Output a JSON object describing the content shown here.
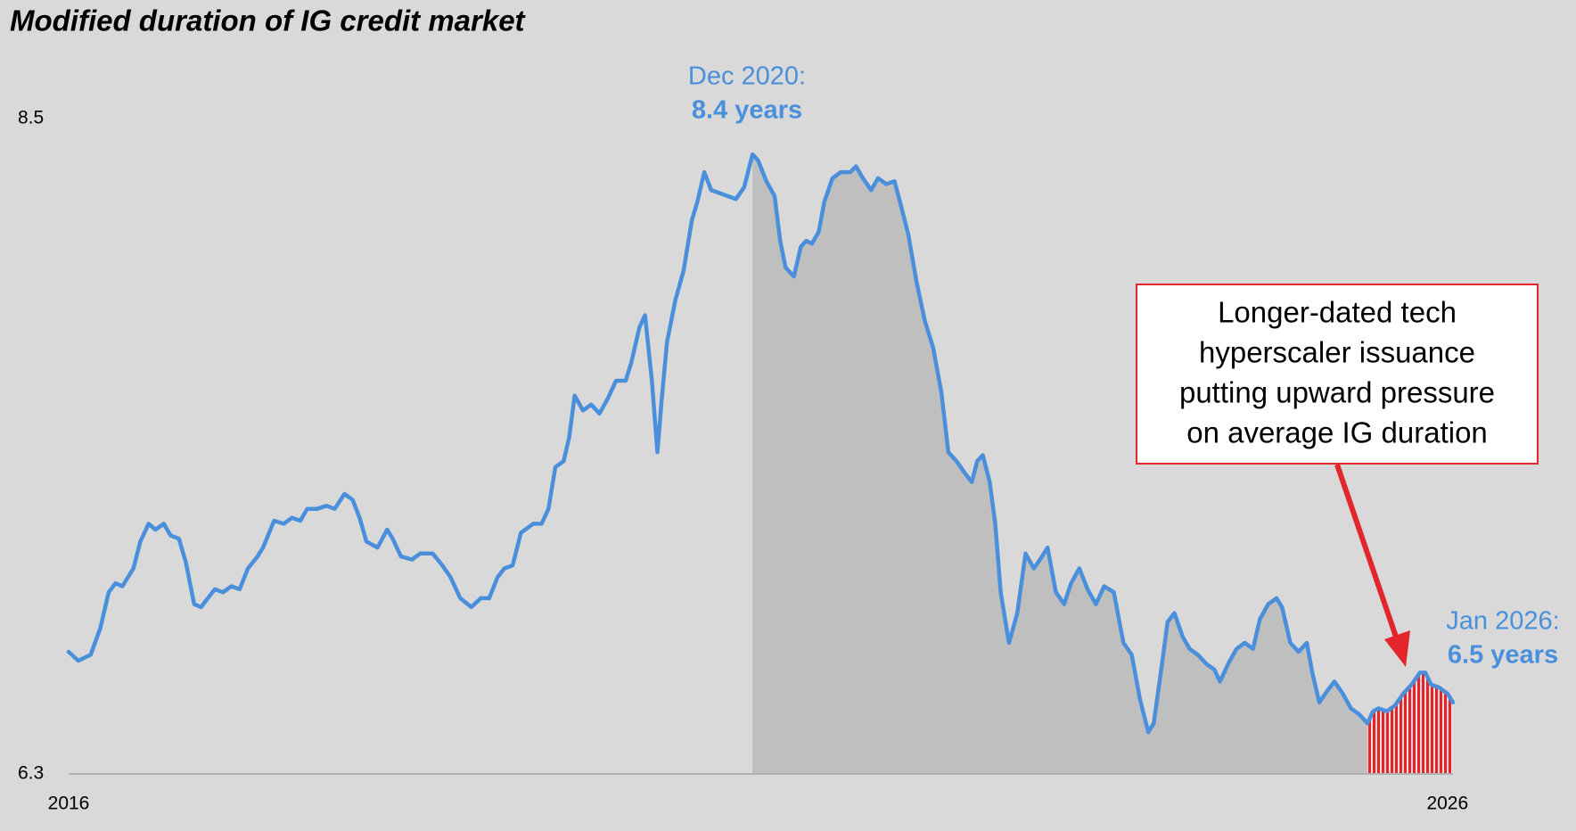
{
  "chart_data": {
    "type": "line",
    "title": "Modified duration of IG credit market",
    "x": [
      2016.0,
      2016.07,
      2016.16,
      2016.23,
      2016.29,
      2016.34,
      2016.39,
      2016.47,
      2016.52,
      2016.58,
      2016.63,
      2016.69,
      2016.74,
      2016.8,
      2016.85,
      2016.91,
      2016.96,
      2017.01,
      2017.06,
      2017.12,
      2017.18,
      2017.24,
      2017.3,
      2017.37,
      2017.41,
      2017.49,
      2017.56,
      2017.62,
      2017.68,
      2017.73,
      2017.8,
      2017.87,
      2017.93,
      2018.0,
      2018.06,
      2018.11,
      2018.16,
      2018.24,
      2018.31,
      2018.35,
      2018.41,
      2018.49,
      2018.55,
      2018.64,
      2018.71,
      2018.77,
      2018.84,
      2018.92,
      2018.99,
      2019.05,
      2019.11,
      2019.16,
      2019.22,
      2019.28,
      2019.37,
      2019.43,
      2019.48,
      2019.53,
      2019.59,
      2019.63,
      2019.67,
      2019.73,
      2019.79,
      2019.85,
      2019.91,
      2019.97,
      2020.04,
      2020.08,
      2020.14,
      2020.18,
      2020.23,
      2020.27,
      2020.3,
      2020.34,
      2020.4,
      2020.46,
      2020.52,
      2020.56,
      2020.61,
      2020.66,
      2020.72,
      2020.78,
      2020.84,
      2020.9,
      2020.96,
      2021.0,
      2021.06,
      2021.12,
      2021.16,
      2021.2,
      2021.26,
      2021.31,
      2021.35,
      2021.39,
      2021.44,
      2021.48,
      2021.54,
      2021.6,
      2021.67,
      2021.71,
      2021.76,
      2021.82,
      2021.87,
      2021.93,
      2021.99,
      2022.03,
      2022.09,
      2022.15,
      2022.21,
      2022.27,
      2022.33,
      2022.38,
      2022.44,
      2022.5,
      2022.55,
      2022.59,
      2022.63,
      2022.68,
      2022.72,
      2022.76,
      2022.82,
      2022.88,
      2022.94,
      2023.0,
      2023.06,
      2023.1,
      2023.16,
      2023.22,
      2023.27,
      2023.33,
      2023.39,
      2023.45,
      2023.51,
      2023.58,
      2023.65,
      2023.71,
      2023.77,
      2023.83,
      2023.87,
      2023.93,
      2023.97,
      2024.02,
      2024.08,
      2024.13,
      2024.19,
      2024.25,
      2024.31,
      2024.35,
      2024.41,
      2024.47,
      2024.53,
      2024.59,
      2024.64,
      2024.7,
      2024.76,
      2024.8,
      2024.86,
      2024.92,
      2024.98,
      2025.02,
      2025.07,
      2025.13,
      2025.18,
      2025.24,
      2025.3,
      2025.36,
      2025.42,
      2025.46,
      2025.5,
      2025.56,
      2025.62,
      2025.68,
      2025.74,
      2025.8,
      2025.84,
      2025.88,
      2025.94,
      2026.0,
      2026.04
    ],
    "values": [
      6.71,
      6.68,
      6.7,
      6.79,
      6.91,
      6.94,
      6.93,
      6.99,
      7.08,
      7.14,
      7.12,
      7.14,
      7.1,
      7.09,
      7.01,
      6.87,
      6.86,
      6.89,
      6.92,
      6.91,
      6.93,
      6.92,
      6.99,
      7.03,
      7.06,
      7.15,
      7.14,
      7.16,
      7.15,
      7.19,
      7.19,
      7.2,
      7.19,
      7.24,
      7.22,
      7.16,
      7.08,
      7.06,
      7.12,
      7.09,
      7.03,
      7.02,
      7.04,
      7.04,
      7.0,
      6.96,
      6.89,
      6.86,
      6.89,
      6.89,
      6.96,
      6.99,
      7.0,
      7.11,
      7.14,
      7.14,
      7.19,
      7.33,
      7.35,
      7.43,
      7.57,
      7.52,
      7.54,
      7.51,
      7.56,
      7.62,
      7.62,
      7.68,
      7.8,
      7.84,
      7.62,
      7.38,
      7.55,
      7.75,
      7.89,
      7.99,
      8.16,
      8.22,
      8.32,
      8.26,
      8.25,
      8.24,
      8.23,
      8.27,
      8.38,
      8.36,
      8.29,
      8.24,
      8.09,
      8.0,
      7.97,
      8.07,
      8.09,
      8.08,
      8.12,
      8.22,
      8.3,
      8.32,
      8.32,
      8.34,
      8.3,
      8.26,
      8.3,
      8.28,
      8.29,
      8.22,
      8.11,
      7.95,
      7.82,
      7.73,
      7.58,
      7.38,
      7.35,
      7.31,
      7.28,
      7.35,
      7.37,
      7.28,
      7.14,
      6.91,
      6.74,
      6.84,
      7.04,
      6.99,
      7.03,
      7.06,
      6.91,
      6.87,
      6.94,
      6.99,
      6.92,
      6.87,
      6.93,
      6.91,
      6.74,
      6.7,
      6.55,
      6.44,
      6.47,
      6.67,
      6.81,
      6.84,
      6.76,
      6.72,
      6.7,
      6.67,
      6.65,
      6.61,
      6.67,
      6.72,
      6.74,
      6.72,
      6.82,
      6.87,
      6.89,
      6.86,
      6.74,
      6.71,
      6.74,
      6.64,
      6.54,
      6.58,
      6.61,
      6.57,
      6.52,
      6.5,
      6.47,
      6.51,
      6.52,
      6.51,
      6.53,
      6.57,
      6.6,
      6.64,
      6.64,
      6.6,
      6.59,
      6.57,
      6.54
    ],
    "color": "#4a8fdb",
    "xlim": [
      2016,
      2026.04
    ],
    "ylim": [
      6.3,
      8.5
    ],
    "xticks": [
      2016,
      2026
    ],
    "yticks": [
      6.3,
      8.5
    ],
    "highlights": [
      {
        "from": 2020.96,
        "color": "#bfbfbf"
      },
      {
        "from": 2025.42,
        "color": "#e3262b",
        "style": "hatch"
      }
    ],
    "annotations": [
      {
        "lines": [
          "Dec 2020:",
          "8.4 years"
        ]
      },
      {
        "lines": [
          "Jan 2026:",
          "6.5 years"
        ]
      }
    ],
    "callout": {
      "lines": [
        "Longer-dated tech",
        "hyperscaler issuance",
        "putting upward pressure",
        "on average IG duration"
      ],
      "color": "#e3262b"
    }
  }
}
